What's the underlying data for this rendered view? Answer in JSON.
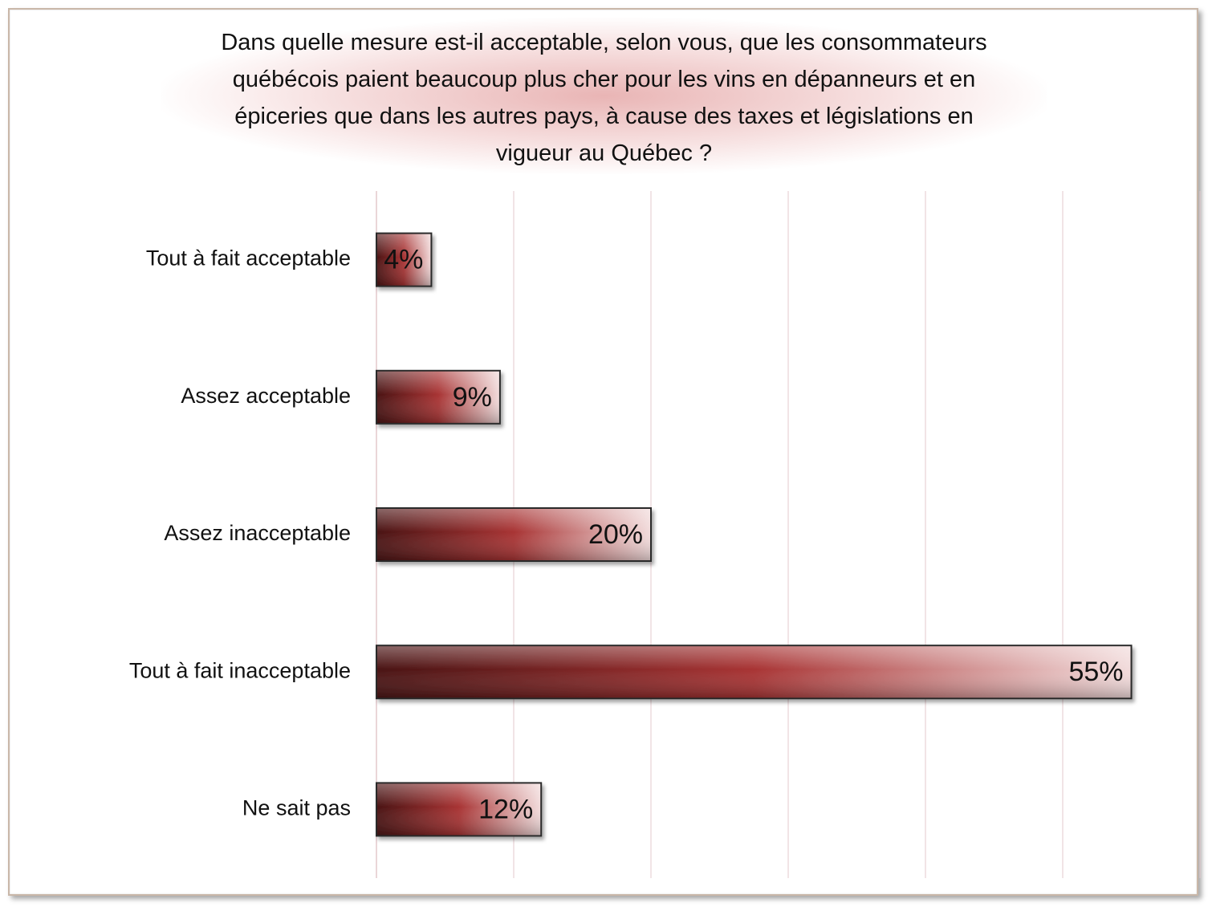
{
  "chart_data": {
    "type": "bar",
    "orientation": "horizontal",
    "title_lines": [
      "Dans quelle mesure est-il acceptable, selon vous, que les consommateurs",
      "québécois paient beaucoup plus cher pour les vins en dépanneurs et en",
      "épiceries que dans les autres pays, à cause des taxes et législations en",
      "vigueur au Québec ?"
    ],
    "categories": [
      "Tout à fait acceptable",
      "Assez acceptable",
      "Assez inacceptable",
      "Tout à fait inacceptable",
      "Ne sait pas"
    ],
    "values": [
      4,
      9,
      20,
      55,
      12
    ],
    "value_labels": [
      "4%",
      "9%",
      "20%",
      "55%",
      "12%"
    ],
    "xlim": [
      0,
      60
    ],
    "grid_step": 10,
    "grid": true,
    "legend": "none",
    "colors": {
      "bar_dark": "#5a1818",
      "bar_mid": "#a83434",
      "bar_light": "#f2dcdc",
      "grid": "#e3c8cc"
    }
  }
}
